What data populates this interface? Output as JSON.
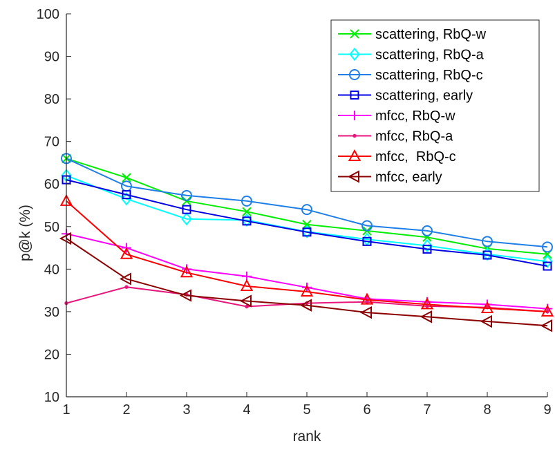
{
  "chart_data": {
    "type": "line",
    "title": "",
    "xlabel": "rank",
    "ylabel": "p@k (%)",
    "xlim": [
      1,
      9
    ],
    "ylim": [
      10,
      100
    ],
    "x": [
      1,
      2,
      3,
      4,
      5,
      6,
      7,
      8,
      9
    ],
    "xticks": [
      "1",
      "2",
      "3",
      "4",
      "5",
      "6",
      "7",
      "8",
      "9"
    ],
    "yticks": [
      "10",
      "20",
      "30",
      "40",
      "50",
      "60",
      "70",
      "80",
      "90",
      "100"
    ],
    "grid": false,
    "legend_position": "top-right",
    "series": [
      {
        "name": "scattering, RbQ-w",
        "color": "#00ee00",
        "marker": "x",
        "values": [
          66.0,
          61.5,
          56.0,
          53.5,
          50.5,
          49.0,
          47.5,
          44.8,
          43.5
        ]
      },
      {
        "name": "scattering, RbQ-a",
        "color": "#00ffff",
        "marker": "diamond",
        "values": [
          62.0,
          56.5,
          51.8,
          51.5,
          48.8,
          47.0,
          45.5,
          43.5,
          41.8
        ]
      },
      {
        "name": "scattering, RbQ-c",
        "color": "#1e7fe8",
        "marker": "circle",
        "values": [
          66.0,
          59.5,
          57.3,
          56.0,
          54.0,
          50.2,
          49.0,
          46.5,
          45.2
        ]
      },
      {
        "name": "scattering, early",
        "color": "#0000e6",
        "marker": "square",
        "values": [
          61.0,
          57.5,
          54.0,
          51.3,
          48.7,
          46.5,
          44.7,
          43.3,
          40.7
        ]
      },
      {
        "name": "mfcc, RbQ-w",
        "color": "#ff00ff",
        "marker": "plus",
        "values": [
          48.3,
          45.0,
          40.0,
          38.3,
          35.7,
          33.0,
          32.3,
          31.7,
          30.7
        ]
      },
      {
        "name": "mfcc, RbQ-a",
        "color": "#e8157d",
        "marker": "dot",
        "values": [
          32.0,
          35.8,
          34.0,
          31.2,
          32.0,
          32.3,
          31.3,
          31.0,
          30.0
        ]
      },
      {
        "name": "mfcc,  RbQ-c",
        "color": "#ff0000",
        "marker": "triangle-up",
        "values": [
          56.0,
          43.5,
          39.2,
          36.0,
          34.7,
          32.8,
          31.7,
          30.8,
          30.0
        ]
      },
      {
        "name": "mfcc, early",
        "color": "#8b0000",
        "marker": "triangle-left",
        "values": [
          47.2,
          37.7,
          33.8,
          32.5,
          31.5,
          29.8,
          28.8,
          27.7,
          26.7
        ]
      }
    ]
  }
}
